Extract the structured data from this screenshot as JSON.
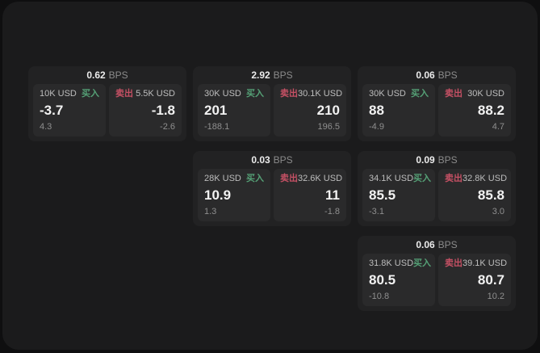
{
  "labels": {
    "bps_unit": "BPS",
    "buy": "买入",
    "sell": "卖出"
  },
  "colors": {
    "outer_background": "#0f0f10",
    "surface": "#1b1b1c",
    "card_background": "#222223",
    "panel_background": "#2a2a2b",
    "buy_green": "#55a076",
    "sell_red": "#c55064",
    "value_text": "#f2f2f2",
    "muted_text": "#8f8f8f"
  },
  "cards": [
    {
      "bps": "0.62",
      "buy": {
        "amount": "10K USD",
        "price": "-3.7",
        "delta": "4.3"
      },
      "sell": {
        "amount": "5.5K USD",
        "price": "-1.8",
        "delta": "-2.6"
      }
    },
    {
      "bps": "2.92",
      "buy": {
        "amount": "30K USD",
        "price": "201",
        "delta": "-188.1"
      },
      "sell": {
        "amount": "30.1K USD",
        "price": "210",
        "delta": "196.5"
      }
    },
    {
      "bps": "0.06",
      "buy": {
        "amount": "30K USD",
        "price": "88",
        "delta": "-4.9"
      },
      "sell": {
        "amount": "30K USD",
        "price": "88.2",
        "delta": "4.7"
      }
    },
    {
      "bps": "0.03",
      "buy": {
        "amount": "28K USD",
        "price": "10.9",
        "delta": "1.3"
      },
      "sell": {
        "amount": "32.6K USD",
        "price": "11",
        "delta": "-1.8"
      }
    },
    {
      "bps": "0.09",
      "buy": {
        "amount": "34.1K USD",
        "price": "85.5",
        "delta": "-3.1"
      },
      "sell": {
        "amount": "32.8K USD",
        "price": "85.8",
        "delta": "3.0"
      }
    },
    {
      "bps": "0.06",
      "buy": {
        "amount": "31.8K USD",
        "price": "80.5",
        "delta": "-10.8"
      },
      "sell": {
        "amount": "39.1K USD",
        "price": "80.7",
        "delta": "10.2"
      }
    }
  ]
}
